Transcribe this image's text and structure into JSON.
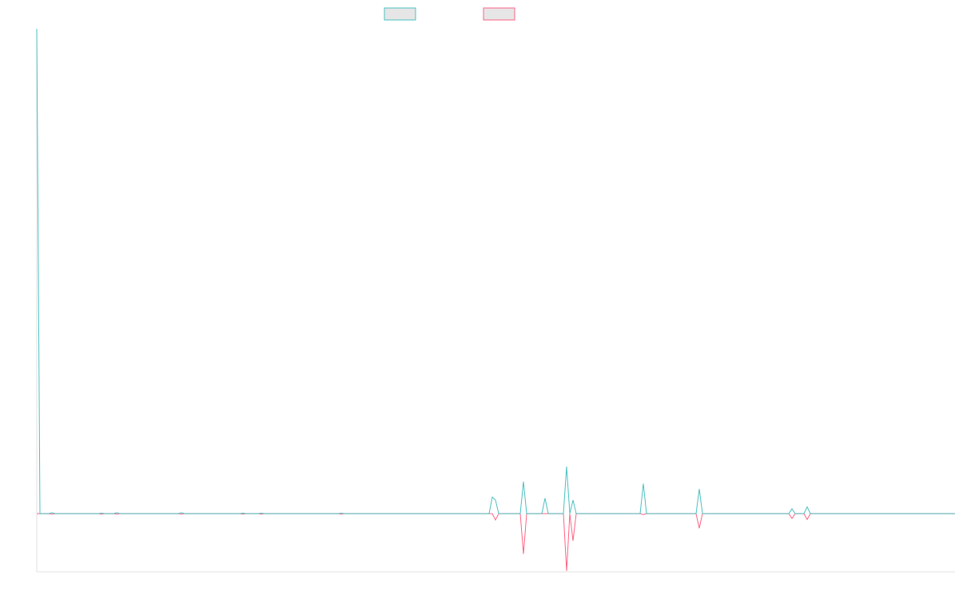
{
  "chart_data": {
    "type": "line",
    "x": [
      0,
      4,
      15,
      19,
      23,
      77,
      81,
      85,
      96,
      100,
      104,
      177,
      181,
      185,
      254,
      258,
      262,
      277,
      281,
      285,
      377,
      381,
      385,
      566,
      570,
      574,
      578,
      605,
      609,
      613,
      632,
      636,
      640,
      659,
      663,
      667,
      671,
      675,
      755,
      759,
      763,
      825,
      829,
      833,
      941,
      945,
      949,
      960,
      964,
      968,
      1149
    ],
    "xlim": [
      0,
      1149
    ],
    "ylim": [
      -12,
      100
    ],
    "series": [
      {
        "color": "#ff6384",
        "values": [
          0,
          0,
          0,
          -0.1,
          0,
          0,
          -0.1,
          0,
          0,
          -0.1,
          0,
          0,
          -0.1,
          0,
          0,
          -0.1,
          0,
          0,
          -0.1,
          0,
          0,
          -0.1,
          0,
          0,
          0,
          -1.3,
          0,
          0,
          -8.3,
          0,
          0,
          0,
          0,
          0,
          -11.8,
          0,
          -5.6,
          0,
          0,
          -0.2,
          0,
          0,
          -3,
          0,
          0,
          -1,
          0,
          0,
          -1.2,
          0,
          0
        ]
      },
      {
        "color": "#4bc0c0",
        "values": [
          100,
          0,
          0,
          0.2,
          0,
          0,
          0.1,
          0,
          0,
          0.2,
          0,
          0,
          0.2,
          0,
          0,
          0.1,
          0,
          0,
          0.1,
          0,
          0,
          0.1,
          0,
          0,
          3.4,
          2.8,
          0,
          0,
          6.6,
          0,
          0,
          3.2,
          0,
          0,
          9.7,
          0,
          2.8,
          0,
          0,
          6.2,
          0,
          0,
          5.1,
          0,
          0,
          1,
          0,
          0,
          1.4,
          0,
          0
        ]
      }
    ]
  }
}
